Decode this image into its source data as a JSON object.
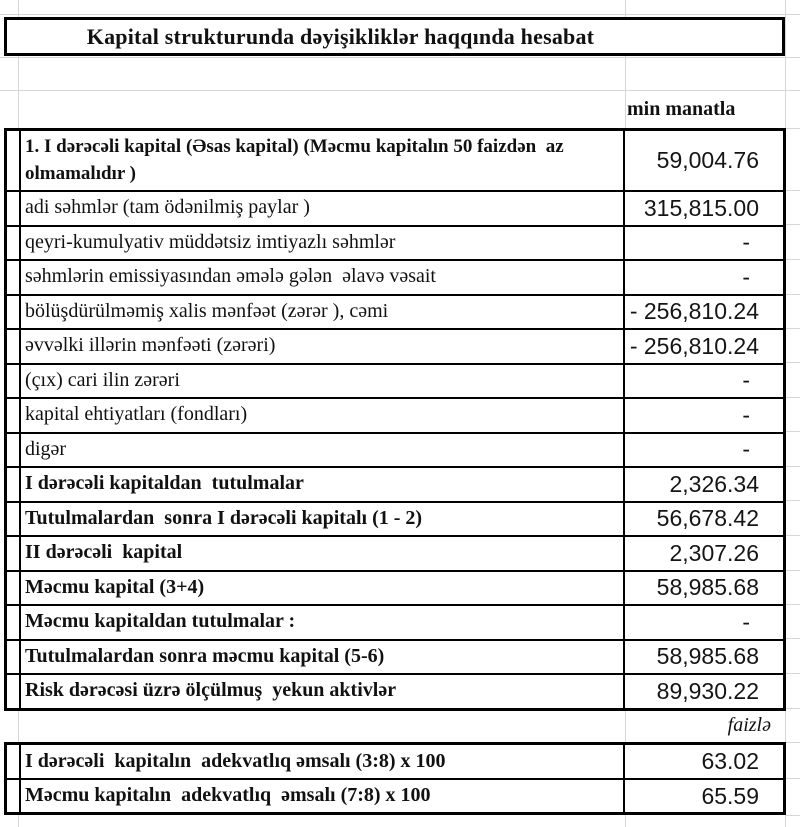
{
  "sheet": {
    "title": "Kapital strukturunda dəyişikliklər haqqında hesabat",
    "unit_note": "min manatla",
    "percent_note": "faizlə",
    "capital_table": {
      "rows": [
        {
          "label": "1. I dərəcəli kapital (Əsas kapital) (Məcmu kapitalın 50 faizdən  az\nolmamalıdır )",
          "value": "59,004.76",
          "bold": true
        },
        {
          "label": "adi səhmlər (tam ödənilmiş paylar )",
          "value": "315,815.00",
          "bold": false
        },
        {
          "label": "qeyri-kumulyativ müddətsiz imtiyazlı səhmlər",
          "value": "-",
          "bold": false
        },
        {
          "label": "səhmlərin emissiyasından əmələ gələn  əlavə vəsait",
          "value": "-",
          "bold": false
        },
        {
          "label": "bölüşdürülməmiş xalis mənfəət (zərər ), cəmi",
          "value": "- 256,810.24",
          "bold": false
        },
        {
          "label": "əvvəlki illərin mənfəəti (zərəri)",
          "value": "- 256,810.24",
          "bold": false
        },
        {
          "label": "(çıx) cari ilin zərəri",
          "value": "-",
          "bold": false
        },
        {
          "label": "kapital ehtiyatları (fondları)",
          "value": "-",
          "bold": false
        },
        {
          "label": "digər",
          "value": "-",
          "bold": false
        },
        {
          "label": "I dərəcəli kapitaldan  tutulmalar",
          "value": "2,326.34",
          "bold": true
        },
        {
          "label": "Tutulmalardan  sonra I dərəcəli kapitalı (1 - 2)",
          "value": "56,678.42",
          "bold": true
        },
        {
          "label": "II dərəcəli  kapital",
          "value": "2,307.26",
          "bold": true
        },
        {
          "label": "Məcmu kapital (3+4)",
          "value": "58,985.68",
          "bold": true
        },
        {
          "label": "Məcmu kapitaldan tutulmalar :",
          "value": "-",
          "bold": true
        },
        {
          "label": "Tutulmalardan sonra məcmu kapital (5-6)",
          "value": "58,985.68",
          "bold": true
        },
        {
          "label": "Risk dərəcəsi üzrə ölçülmuş  yekun aktivlər",
          "value": "89,930.22",
          "bold": true
        }
      ]
    },
    "ratio_table": {
      "rows": [
        {
          "label": "I dərəcəli  kapitalın  adekvatlıq əmsalı (3:8) x 100",
          "value": "63.02",
          "bold": true
        },
        {
          "label": "Məcmu kapitalın  adekvatlıq  əmsalı (7:8) x 100",
          "value": "65.59",
          "bold": true
        }
      ]
    },
    "colors": {
      "table_border": "#000000",
      "gridline": "#d6d6d6",
      "text": "#111111"
    }
  }
}
